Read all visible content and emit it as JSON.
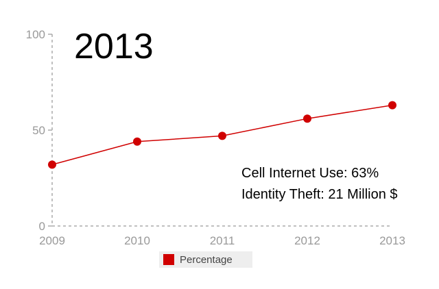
{
  "overlay": {
    "year_title": "2013",
    "annotation_line1": "Cell Internet Use: 63%",
    "annotation_line2": "Identity Theft: 21 Million $"
  },
  "colors": {
    "series": "#d00000",
    "axis_text": "#999999",
    "axis_line": "#aaaaaa"
  },
  "chart_data": {
    "type": "line",
    "x": [
      "2009",
      "2010",
      "2011",
      "2012",
      "2013"
    ],
    "series": [
      {
        "name": "Percentage",
        "values": [
          32,
          44,
          47,
          56,
          63
        ]
      }
    ],
    "yticks": [
      "0",
      "50",
      "100"
    ],
    "ylim": [
      0,
      100
    ],
    "grid": false,
    "legend_position": "bottom-left"
  }
}
